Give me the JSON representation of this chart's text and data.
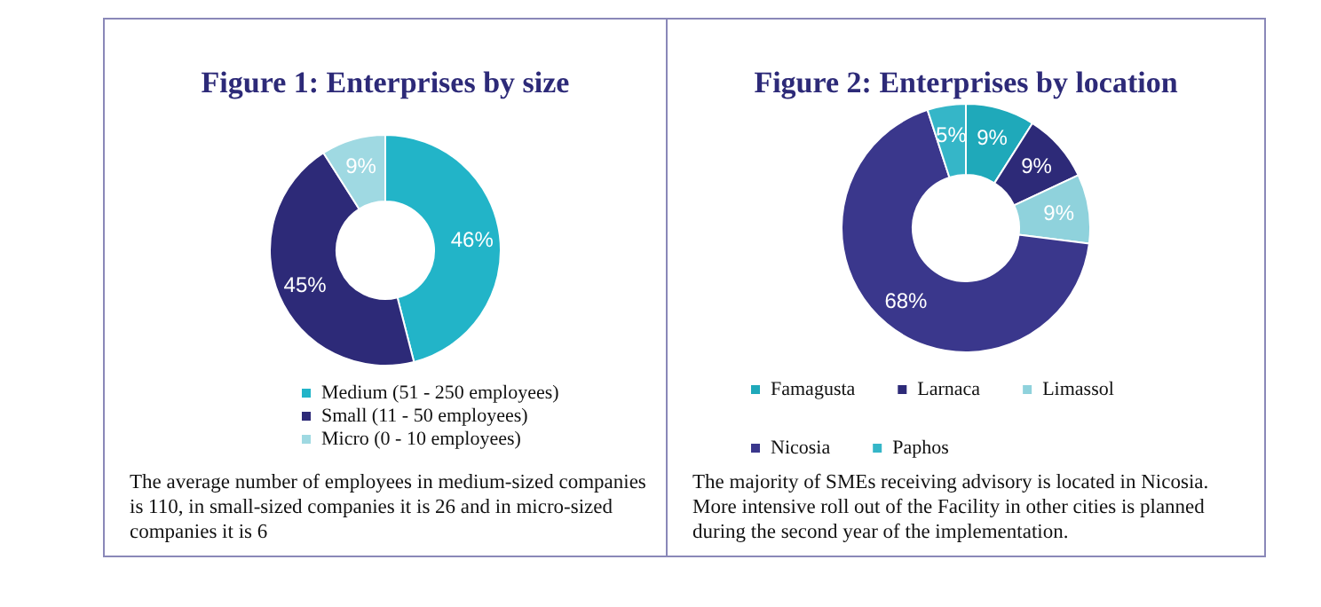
{
  "chart_data": [
    {
      "type": "donut",
      "title": "Figure 1: Enterprises by size",
      "categories": [
        "Medium (51 - 250 employees)",
        "Small (11 - 50 employees)",
        "Micro (0 - 10 employees)"
      ],
      "values": [
        46,
        45,
        9
      ],
      "value_labels": [
        "46%",
        "45%",
        "9%"
      ],
      "colors": [
        "#22b4c8",
        "#2d2a78",
        "#9fd9e2"
      ],
      "legend": "bottom",
      "annotations": [
        "The average number of employees in medium-sized companies is 110, in small-sized companies it is 26 and in micro-sized companies it is 6"
      ]
    },
    {
      "type": "donut",
      "title": "Figure 2: Enterprises by location",
      "categories": [
        "Famagusta",
        "Larnaca",
        "Limassol",
        "Nicosia",
        "Paphos"
      ],
      "values": [
        9,
        9,
        9,
        68,
        5
      ],
      "value_labels": [
        "9%",
        "9%",
        "9%",
        "68%",
        "5%"
      ],
      "colors": [
        "#1fa9ba",
        "#2d2a78",
        "#8fd2dc",
        "#3a378c",
        "#35b6c8"
      ],
      "legend": "bottom",
      "annotations": [
        "The majority of SMEs receiving advisory is located in Nicosia. More intensive roll out of the Facility in other cities is planned during the second year of the implementation."
      ]
    }
  ]
}
